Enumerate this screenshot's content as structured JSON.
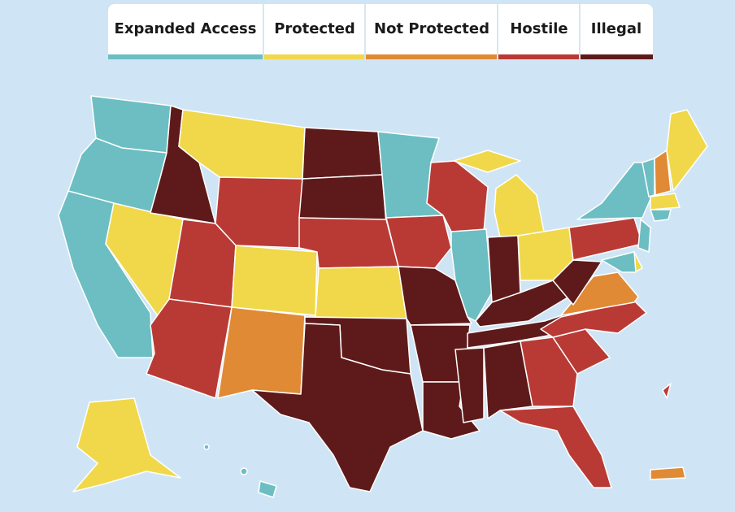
{
  "legend": {
    "items": [
      {
        "label": "Expanded Access",
        "color": "#6cbec2"
      },
      {
        "label": "Protected",
        "color": "#f0d84a"
      },
      {
        "label": "Not Protected",
        "color": "#e08a35"
      },
      {
        "label": "Hostile",
        "color": "#b93a35"
      },
      {
        "label": "Illegal",
        "color": "#5e1a1a"
      }
    ]
  }
}
